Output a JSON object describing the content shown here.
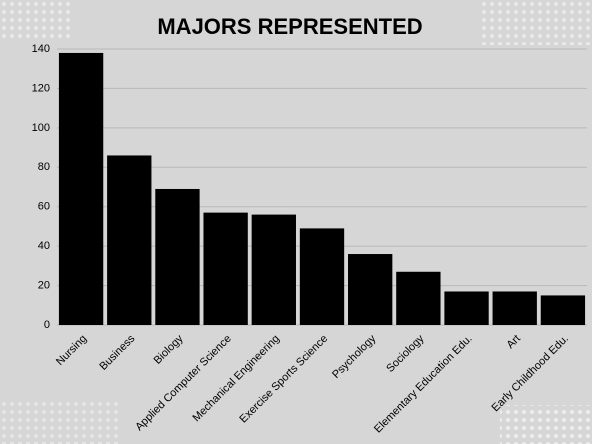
{
  "chart_data": {
    "type": "bar",
    "title": "MAJORS REPRESENTED",
    "categories": [
      "Nursing",
      "Business",
      "Biology",
      "Applied Computer Science",
      "Mechanical Engineering",
      "Exercise Sports Science",
      "Psychology",
      "Sociology",
      "Elementary Education Edu.",
      "Art",
      "Early Childhood Edu."
    ],
    "values": [
      138,
      86,
      69,
      57,
      56,
      49,
      36,
      27,
      17,
      17,
      15
    ],
    "color": "#000000",
    "ylim": [
      0,
      140
    ],
    "yticks": [
      0,
      20,
      40,
      60,
      80,
      100,
      120,
      140
    ],
    "grid": true
  }
}
